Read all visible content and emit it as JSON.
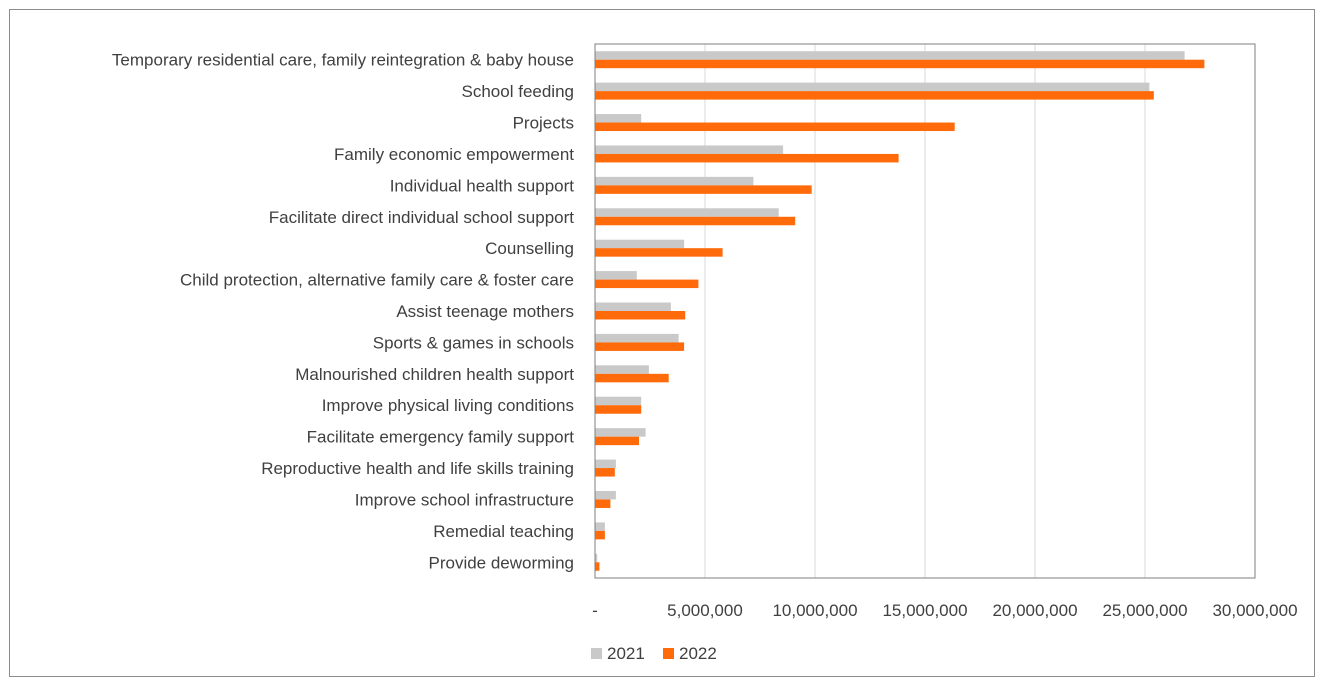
{
  "chart_data": {
    "type": "bar",
    "orientation": "horizontal",
    "categories": [
      "Temporary residential care, family reintegration & baby house",
      "School feeding",
      "Projects",
      "Family economic empowerment",
      "Individual health support",
      "Facilitate direct individual school support",
      "Counselling",
      "Child protection, alternative family care & foster care",
      "Assist teenage mothers",
      "Sports & games in schools",
      "Malnourished children health support",
      "Improve physical living conditions",
      "Facilitate emergency family support",
      "Reproductive health and life skills training",
      "Improve school infrastructure",
      "Remedial teaching",
      "Provide deworming"
    ],
    "series": [
      {
        "name": "2021",
        "color": "#c9c9c9",
        "values": [
          26800000,
          25200000,
          2100000,
          8550000,
          7200000,
          8350000,
          4050000,
          1900000,
          3450000,
          3800000,
          2450000,
          2100000,
          2300000,
          950000,
          950000,
          450000,
          100000
        ]
      },
      {
        "name": "2022",
        "color": "#ff6b0a",
        "values": [
          27700000,
          25400000,
          16350000,
          13800000,
          9850000,
          9100000,
          5800000,
          4700000,
          4100000,
          4050000,
          3350000,
          2100000,
          2000000,
          900000,
          700000,
          450000,
          200000
        ]
      }
    ],
    "xlim": [
      0,
      30000000
    ],
    "x_ticks": [
      "-",
      "5,000,000",
      "10,000,000",
      "15,000,000",
      "20,000,000",
      "25,000,000",
      "30,000,000"
    ],
    "grid": "vertical",
    "legend_position": "bottom",
    "title": "",
    "xlabel": "",
    "ylabel": ""
  },
  "colors": {
    "axis": "#7f7f7f",
    "grid": "#d9d9d9",
    "text": "#404040"
  }
}
